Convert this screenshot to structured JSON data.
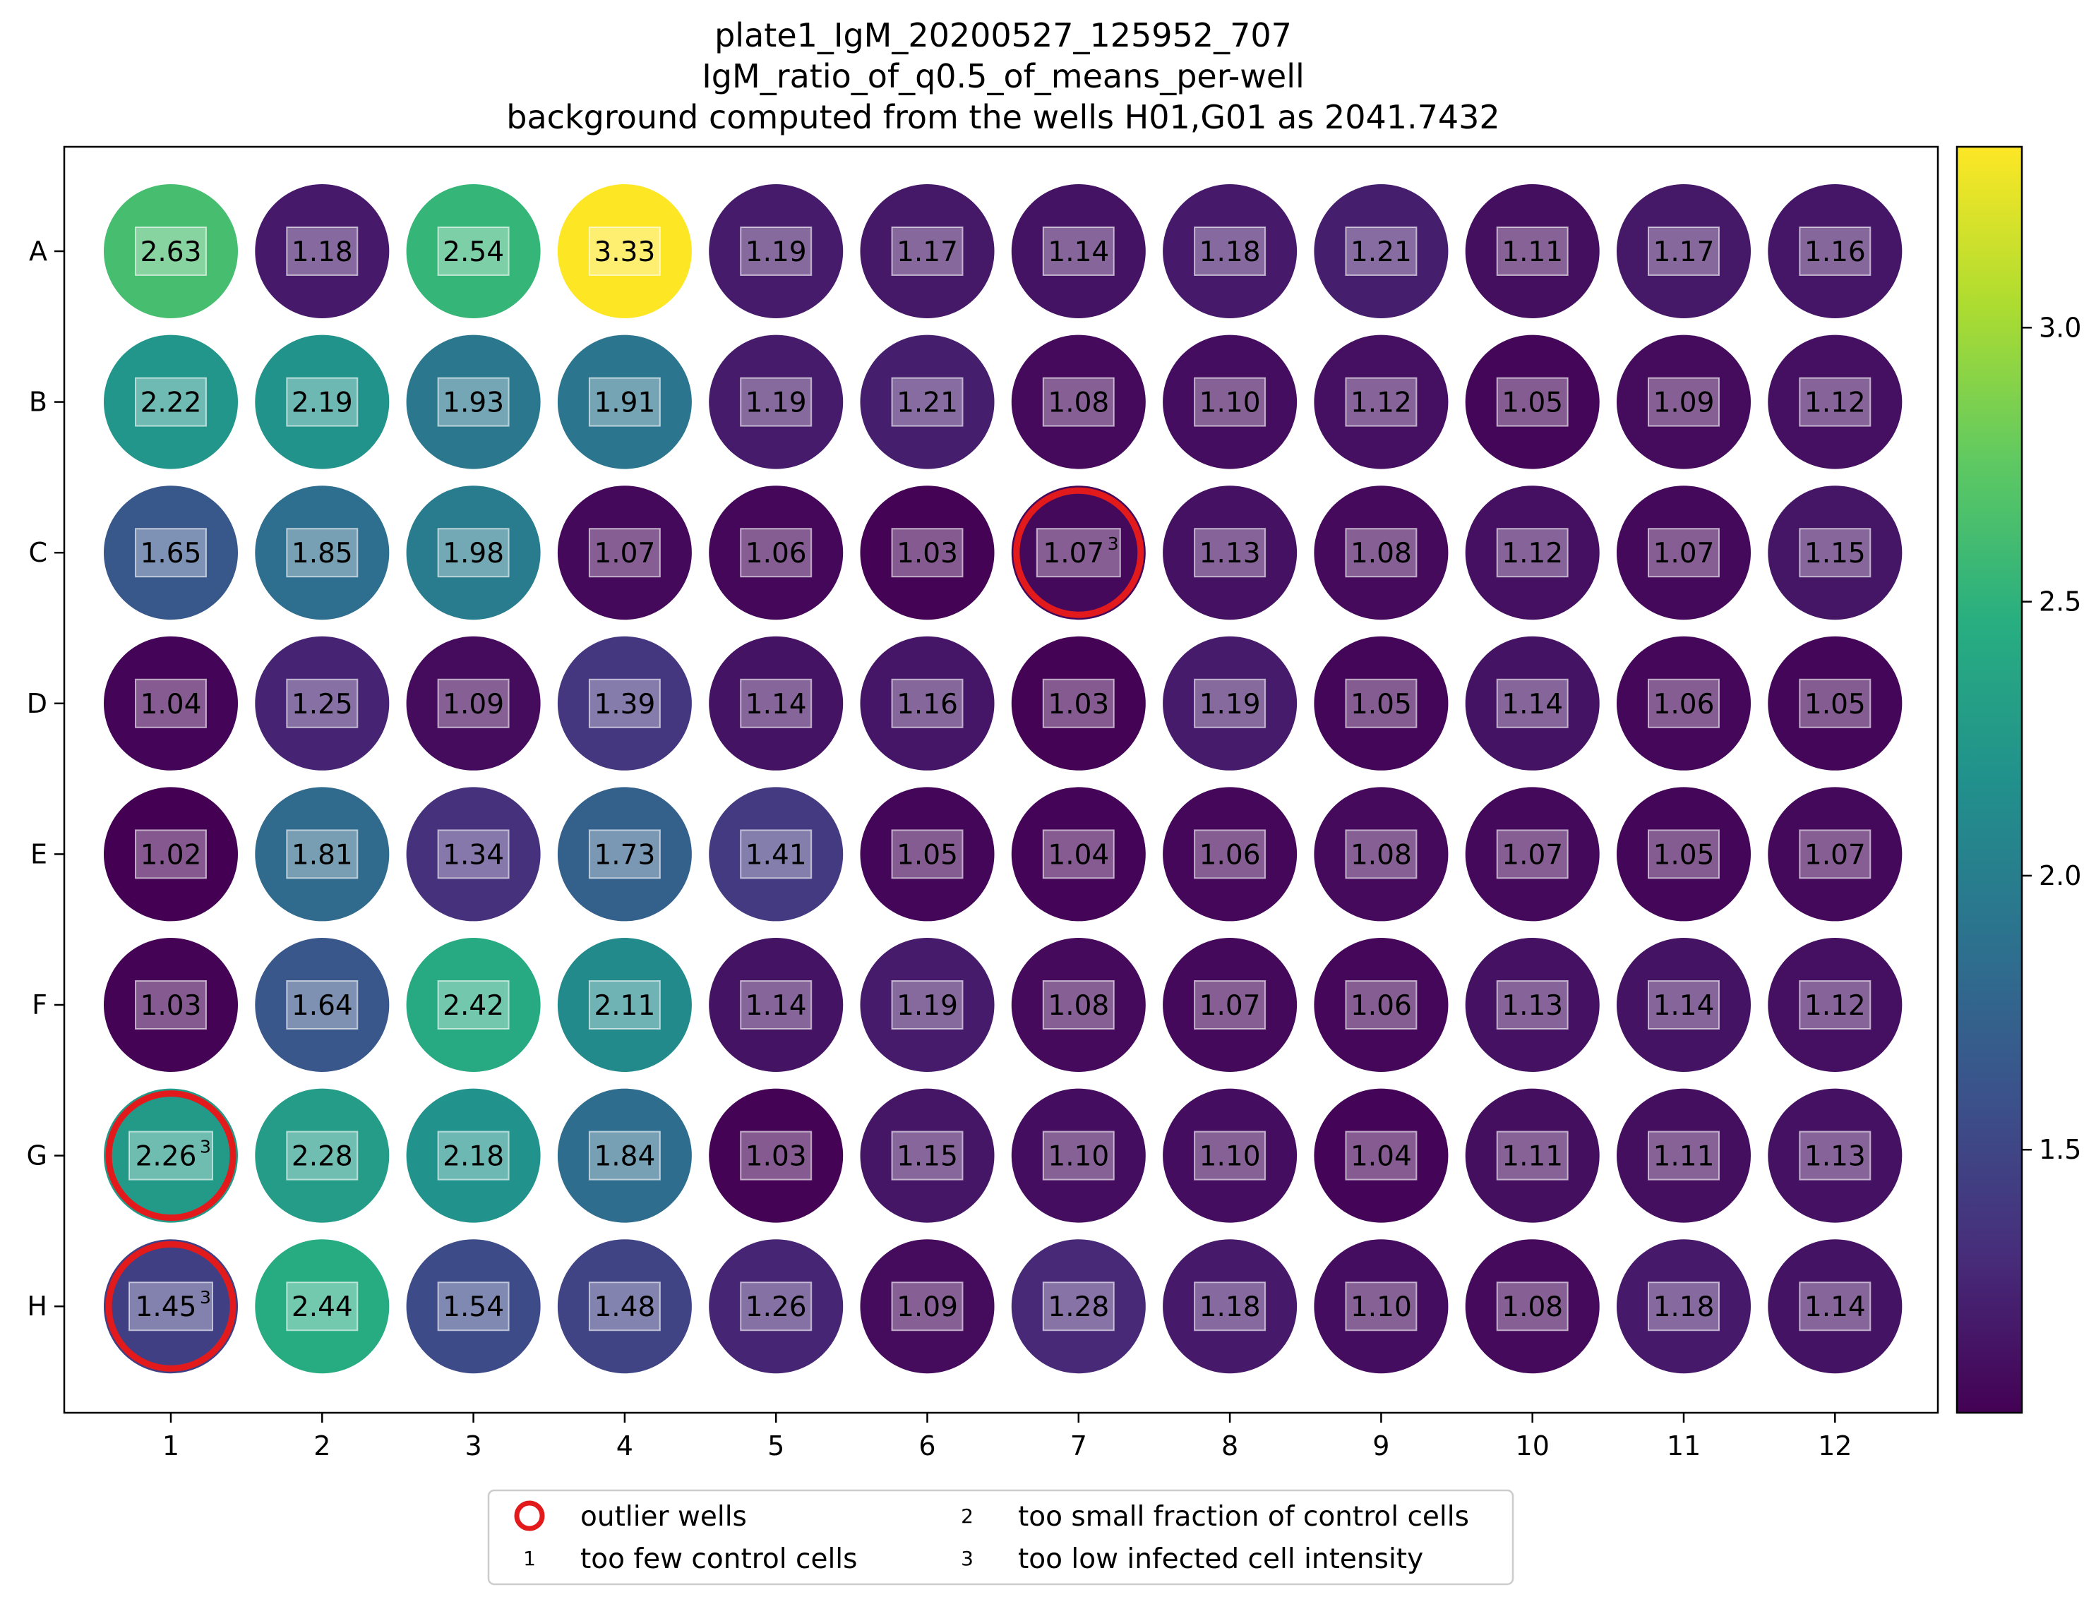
{
  "chart_data": {
    "type": "heatmap",
    "title_lines": [
      "plate1_IgM_20200527_125952_707",
      "IgM_ratio_of_q0.5_of_means_per-well",
      "background computed from  the wells H01,G01 as 2041.7432"
    ],
    "xlabel": "",
    "ylabel": "",
    "rows": [
      "A",
      "B",
      "C",
      "D",
      "E",
      "F",
      "G",
      "H"
    ],
    "columns": [
      "1",
      "2",
      "3",
      "4",
      "5",
      "6",
      "7",
      "8",
      "9",
      "10",
      "11",
      "12"
    ],
    "values": [
      [
        2.63,
        1.18,
        2.54,
        3.33,
        1.19,
        1.17,
        1.14,
        1.18,
        1.21,
        1.11,
        1.17,
        1.16
      ],
      [
        2.22,
        2.19,
        1.93,
        1.91,
        1.19,
        1.21,
        1.08,
        1.1,
        1.12,
        1.05,
        1.09,
        1.12
      ],
      [
        1.65,
        1.85,
        1.98,
        1.07,
        1.06,
        1.03,
        1.07,
        1.13,
        1.08,
        1.12,
        1.07,
        1.15
      ],
      [
        1.04,
        1.25,
        1.09,
        1.39,
        1.14,
        1.16,
        1.03,
        1.19,
        1.05,
        1.14,
        1.06,
        1.05
      ],
      [
        1.02,
        1.81,
        1.34,
        1.73,
        1.41,
        1.05,
        1.04,
        1.06,
        1.08,
        1.07,
        1.05,
        1.07
      ],
      [
        1.03,
        1.64,
        2.42,
        2.11,
        1.14,
        1.19,
        1.08,
        1.07,
        1.06,
        1.13,
        1.14,
        1.12
      ],
      [
        2.26,
        2.28,
        2.18,
        1.84,
        1.03,
        1.15,
        1.1,
        1.1,
        1.04,
        1.11,
        1.11,
        1.13
      ],
      [
        1.45,
        2.44,
        1.54,
        1.48,
        1.26,
        1.09,
        1.28,
        1.18,
        1.1,
        1.08,
        1.18,
        1.14
      ]
    ],
    "outliers": [
      {
        "row": "C",
        "col": "7",
        "flag": "3"
      },
      {
        "row": "G",
        "col": "1",
        "flag": "3"
      },
      {
        "row": "H",
        "col": "1",
        "flag": "3"
      }
    ],
    "colormap": "viridis",
    "colorbar": {
      "min": 1.02,
      "max": 3.33,
      "ticks": [
        1.5,
        2.0,
        2.5,
        3.0
      ],
      "tick_labels": [
        "1.5",
        "2.0",
        "2.5",
        "3.0"
      ]
    },
    "outlier_color": "#e31a1c",
    "legend": {
      "placement": "bottom-center",
      "items": [
        {
          "marker": "red-circle",
          "label": "outlier wells"
        },
        {
          "marker": "1",
          "label": "too few control cells"
        },
        {
          "marker": "2",
          "label": "too small fraction of control cells"
        },
        {
          "marker": "3",
          "label": "too low infected cell intensity"
        }
      ]
    }
  }
}
